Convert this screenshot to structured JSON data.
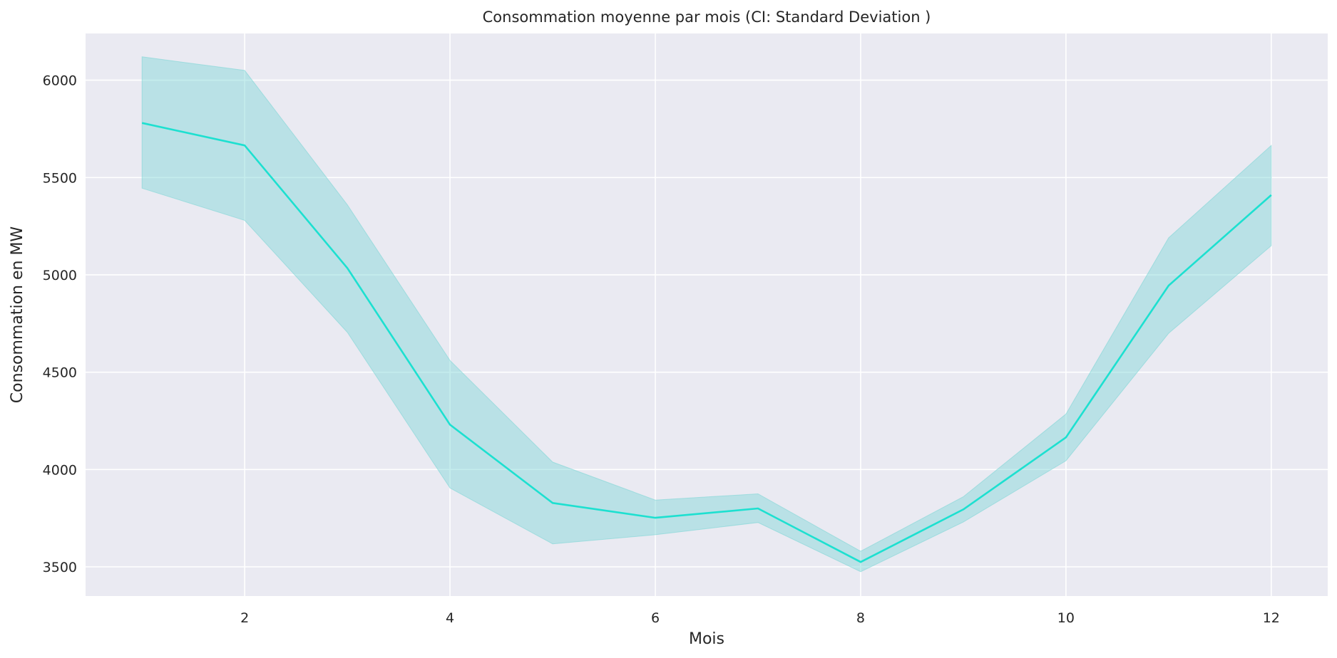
{
  "chart_data": {
    "type": "line",
    "title": "Consommation moyenne par mois (CI: Standard Deviation )",
    "xlabel": "Mois",
    "ylabel": "Consommation en MW",
    "xlim": [
      0.45,
      12.55
    ],
    "ylim": [
      3350,
      6240
    ],
    "xticks": [
      2,
      4,
      6,
      8,
      10,
      12
    ],
    "yticks": [
      3500,
      4000,
      4500,
      5000,
      5500,
      6000
    ],
    "grid": true,
    "legend": "none",
    "colors": {
      "line": "#1de0d0",
      "band": "#7fd6d6",
      "plot_background": "#eaeaf2",
      "grid": "#ffffff"
    },
    "series": [
      {
        "x": [
          1,
          2,
          3,
          4,
          5,
          6,
          7,
          8,
          9,
          10,
          11,
          12
        ],
        "mean": [
          5780,
          5665,
          5035,
          4230,
          3828,
          3752,
          3800,
          3525,
          3795,
          4165,
          4945,
          5410
        ],
        "lower": [
          5445,
          5280,
          4705,
          3905,
          3618,
          3665,
          3728,
          3475,
          3730,
          4045,
          4700,
          5150
        ],
        "upper": [
          6120,
          6050,
          5360,
          4560,
          4038,
          3843,
          3875,
          3580,
          3860,
          4285,
          5190,
          5665
        ]
      }
    ]
  }
}
